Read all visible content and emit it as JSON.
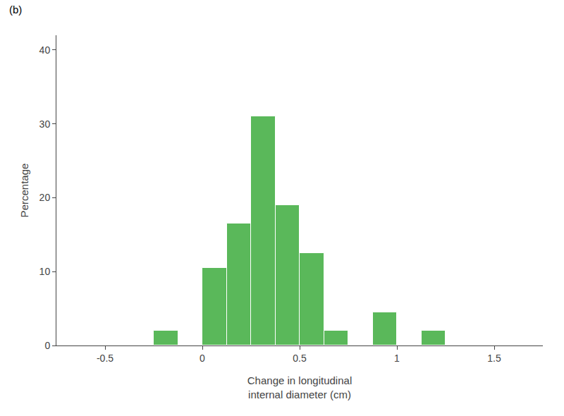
{
  "chart_data": {
    "type": "histogram",
    "bins": [
      -0.25,
      -0.125,
      0.0,
      0.125,
      0.25,
      0.375,
      0.5,
      0.625,
      0.75,
      0.875,
      1.0,
      1.125,
      1.25
    ],
    "values": [
      2.0,
      0.0,
      10.5,
      16.5,
      31.0,
      19.0,
      12.5,
      2.0,
      0.0,
      4.5,
      0.0,
      2.0
    ],
    "color": "#5ab85a",
    "xlabel": "Change in longitudinal\ninternal diameter (cm)",
    "ylabel": "Percentage",
    "annotations": [
      "(b)"
    ],
    "xlim": [
      -0.75,
      1.75
    ],
    "xticks": [
      -0.5,
      0,
      0.5,
      1,
      1.5
    ],
    "ylim": [
      0,
      42
    ],
    "yticks": [
      0,
      10,
      20,
      30,
      40
    ],
    "grid": false
  }
}
